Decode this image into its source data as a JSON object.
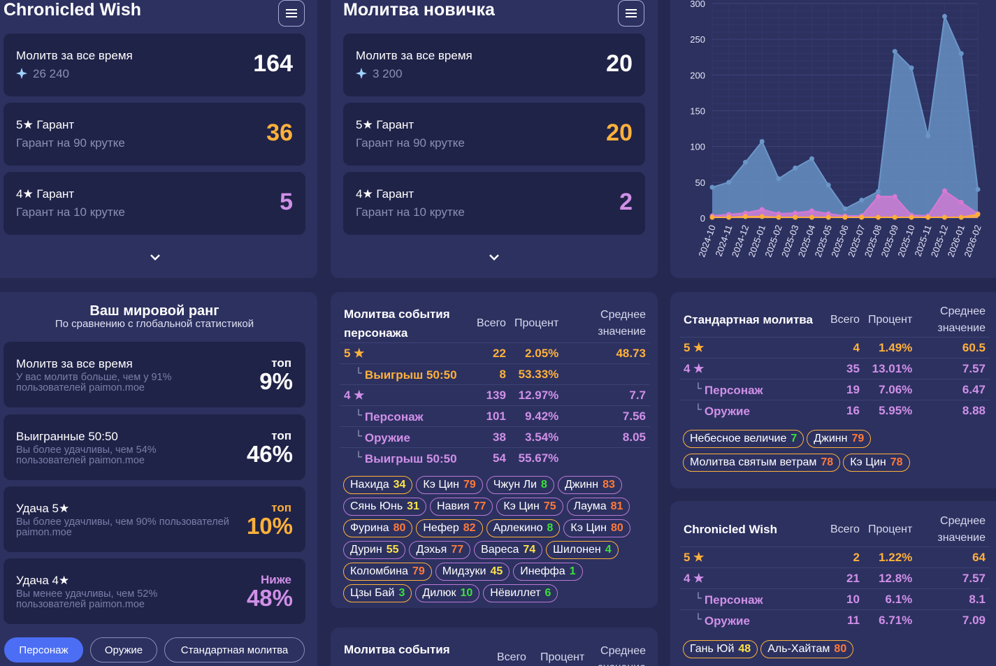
{
  "left": {
    "title": "Chronicled Wish",
    "cards": [
      {
        "label": "Молитв за все время",
        "sub": "26 240",
        "value": "164",
        "color": "#ffffff"
      },
      {
        "label": "5★ Гарант",
        "sub": "Гарант на 90 крутке",
        "value": "36",
        "color": "#ffb13b"
      },
      {
        "label": "4★ Гарант",
        "sub": "Гарант на 10 крутке",
        "value": "5",
        "color": "#d090e8"
      }
    ]
  },
  "middle": {
    "title": "Молитва новичка",
    "cards": [
      {
        "label": "Молитв за все время",
        "sub": "3 200",
        "value": "20",
        "color": "#ffffff"
      },
      {
        "label": "5★ Гарант",
        "sub": "Гарант на 90 крутке",
        "value": "20",
        "color": "#ffb13b"
      },
      {
        "label": "4★ Гарант",
        "sub": "Гарант на 10 крутке",
        "value": "2",
        "color": "#d090e8"
      }
    ]
  },
  "rank": {
    "title": "Ваш мировой ранг",
    "subtitle": "По сравнению с глобальной статистикой",
    "items": [
      {
        "label": "Молитв за все время",
        "desc": "У вас молитв больше, чем у 91% пользователей paimon.moe",
        "top": "топ",
        "pct": "9%",
        "color": "#ffffff"
      },
      {
        "label": "Выигранные 50:50",
        "desc": "Вы более удачливы, чем 54% пользователей paimon.moe",
        "top": "топ",
        "pct": "46%",
        "color": "#ffffff"
      },
      {
        "label": "Удача 5★",
        "desc": "Вы более удачливы, чем 90% пользователей paimon.moe",
        "top": "топ",
        "pct": "10%",
        "color": "#ffb13b"
      },
      {
        "label": "Удача 4★",
        "desc": "Вы менее удачливы, чем 52% пользователей paimon.moe",
        "top": "Ниже",
        "pct": "48%",
        "color": "#d090e8"
      }
    ]
  },
  "tabs": [
    "Персонаж",
    "Оружие",
    "Стандартная молитва"
  ],
  "columns": {
    "total": "Всего",
    "percent": "Процент",
    "avg": "Среднее значение"
  },
  "char_event": {
    "title": "Молитва события персонажа",
    "rows": [
      {
        "label": "5 ★",
        "total": "22",
        "pct": "2.05%",
        "avg": "48.73"
      },
      {
        "label": "Выигрыш 50:50",
        "total": "8",
        "pct": "53.33%",
        "avg": ""
      },
      {
        "label": "4 ★",
        "total": "139",
        "pct": "12.97%",
        "avg": "7.7"
      },
      {
        "label": "Персонаж",
        "total": "101",
        "pct": "9.42%",
        "avg": "7.56"
      },
      {
        "label": "Оружие",
        "total": "38",
        "pct": "3.54%",
        "avg": "8.05"
      },
      {
        "label": "Выигрыш 50:50",
        "total": "54",
        "pct": "55.67%",
        "avg": ""
      }
    ],
    "chips": [
      {
        "name": "Нахида",
        "n": "34",
        "t": "gold"
      },
      {
        "name": "Кэ Цин",
        "n": "79",
        "t": "purple"
      },
      {
        "name": "Чжун Ли",
        "n": "8",
        "t": "purple"
      },
      {
        "name": "Джинн",
        "n": "83",
        "t": "purple"
      },
      {
        "name": "Сянь Юнь",
        "n": "31",
        "t": "purple"
      },
      {
        "name": "Навия",
        "n": "77",
        "t": "purple"
      },
      {
        "name": "Кэ Цин",
        "n": "75",
        "t": "purple"
      },
      {
        "name": "Лаума",
        "n": "81",
        "t": "purple"
      },
      {
        "name": "Фурина",
        "n": "80",
        "t": "gold"
      },
      {
        "name": "Нефер",
        "n": "82",
        "t": "gold"
      },
      {
        "name": "Арлекино",
        "n": "8",
        "t": "gold"
      },
      {
        "name": "Кэ Цин",
        "n": "80",
        "t": "purple"
      },
      {
        "name": "Дурин",
        "n": "55",
        "t": "purple"
      },
      {
        "name": "Дэхья",
        "n": "77",
        "t": "purple"
      },
      {
        "name": "Вареса",
        "n": "74",
        "t": "purple"
      },
      {
        "name": "Шилонен",
        "n": "4",
        "t": "gold"
      },
      {
        "name": "Коломбина",
        "n": "79",
        "t": "gold"
      },
      {
        "name": "Мидзуки",
        "n": "45",
        "t": "purple"
      },
      {
        "name": "Инеффа",
        "n": "1",
        "t": "purple"
      },
      {
        "name": "Цзы Бай",
        "n": "3",
        "t": "gold"
      },
      {
        "name": "Дилюк",
        "n": "10",
        "t": "purple"
      },
      {
        "name": "Нёвиллет",
        "n": "6",
        "t": "purple"
      }
    ]
  },
  "weapon_event": {
    "title": "Молитва события"
  },
  "standard": {
    "title": "Стандартная молитва",
    "rows": [
      {
        "label": "5 ★",
        "total": "4",
        "pct": "1.49%",
        "avg": "60.5"
      },
      {
        "label": "4 ★",
        "total": "35",
        "pct": "13.01%",
        "avg": "7.57"
      },
      {
        "label": "Персонаж",
        "total": "19",
        "pct": "7.06%",
        "avg": "6.47"
      },
      {
        "label": "Оружие",
        "total": "16",
        "pct": "5.95%",
        "avg": "8.88"
      }
    ],
    "chips": [
      {
        "name": "Небесное величие",
        "n": "7",
        "t": "gold"
      },
      {
        "name": "Джинн",
        "n": "79",
        "t": "gold"
      },
      {
        "name": "Молитва святым ветрам",
        "n": "78",
        "t": "gold"
      },
      {
        "name": "Кэ Цин",
        "n": "78",
        "t": "gold"
      }
    ]
  },
  "chronicled": {
    "title": "Chronicled Wish",
    "rows": [
      {
        "label": "5 ★",
        "total": "2",
        "pct": "1.22%",
        "avg": "64"
      },
      {
        "label": "4 ★",
        "total": "21",
        "pct": "12.8%",
        "avg": "7.57"
      },
      {
        "label": "Персонаж",
        "total": "10",
        "pct": "6.1%",
        "avg": "8.1"
      },
      {
        "label": "Оружие",
        "total": "11",
        "pct": "6.71%",
        "avg": "7.09"
      }
    ],
    "chips": [
      {
        "name": "Гань Юй",
        "n": "48",
        "t": "gold"
      },
      {
        "name": "Аль-Хайтам",
        "n": "80",
        "t": "gold"
      }
    ]
  },
  "chart_data": {
    "type": "area",
    "x": [
      "2024-10",
      "2024-11",
      "2024-12",
      "2025-01",
      "2025-02",
      "2025-03",
      "2025-04",
      "2025-05",
      "2025-06",
      "2025-07",
      "2025-08",
      "2025-09",
      "2025-10",
      "2025-11",
      "2025-12",
      "2026-01",
      "2026-02"
    ],
    "ylim": [
      0,
      300
    ],
    "yticks": [
      "0",
      "50",
      "100",
      "150",
      "200",
      "250",
      "300"
    ],
    "series": [
      {
        "values": [
          43,
          50,
          78,
          107,
          55,
          70,
          83,
          46,
          13,
          25,
          37,
          233,
          210,
          115,
          282,
          230,
          40
        ],
        "color": "#6a96c8"
      },
      {
        "values": [
          3,
          5,
          7,
          12,
          6,
          7,
          10,
          6,
          3,
          3,
          30,
          30,
          4,
          3,
          38,
          22,
          6
        ],
        "color": "#d67ad4"
      },
      {
        "values": [
          1,
          1,
          2,
          2,
          1,
          1,
          1,
          1,
          1,
          1,
          1,
          1,
          1,
          1,
          1,
          1,
          5
        ],
        "color": "#ffae3a"
      }
    ]
  }
}
